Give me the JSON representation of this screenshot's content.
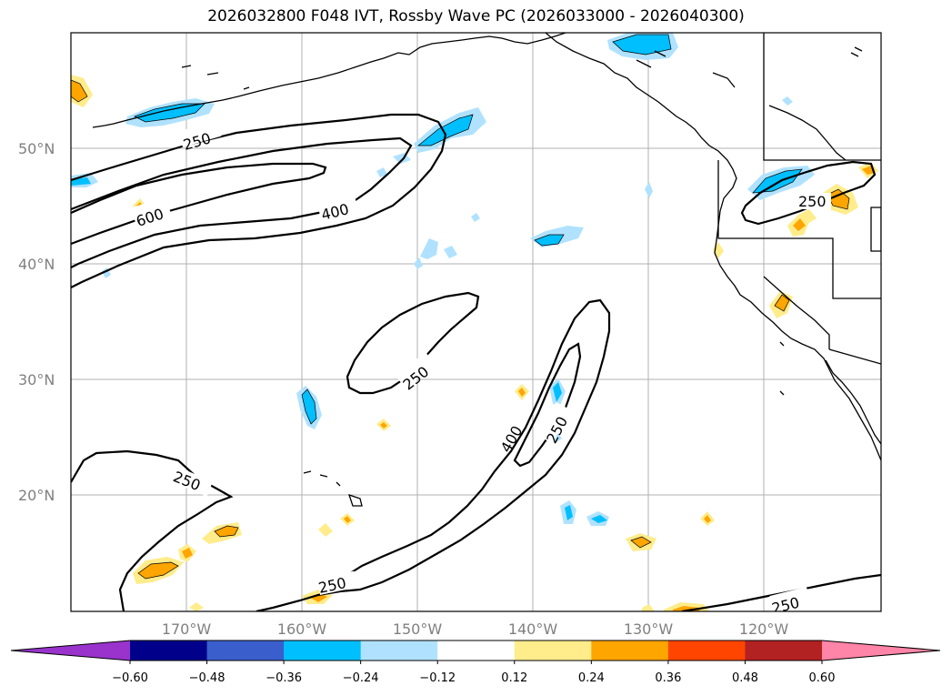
{
  "title": "2026032800 F048 IVT, Rossby Wave PC (2026033000 - 2026040300)",
  "map": {
    "lat_labels": [
      "50°N",
      "40°N",
      "30°N",
      "20°N"
    ],
    "lon_labels": [
      "170°W",
      "160°W",
      "150°W",
      "140°W",
      "130°W",
      "120°W"
    ],
    "contour_labels": [
      "250",
      "600",
      "400",
      "250",
      "250",
      "400",
      "250",
      "250",
      "250",
      "250"
    ]
  },
  "colorbar": {
    "colors": [
      "#9933cc",
      "#00008b",
      "#3a5fcd",
      "#00bfff",
      "#b0e2ff",
      "#ffffff",
      "#ffec8b",
      "#ffa500",
      "#ff4500",
      "#b22222",
      "#ff85a8"
    ],
    "tick_labels": [
      "−0.60",
      "−0.48",
      "−0.36",
      "−0.24",
      "−0.12",
      "0.12",
      "0.24",
      "0.36",
      "0.48",
      "0.60"
    ]
  }
}
